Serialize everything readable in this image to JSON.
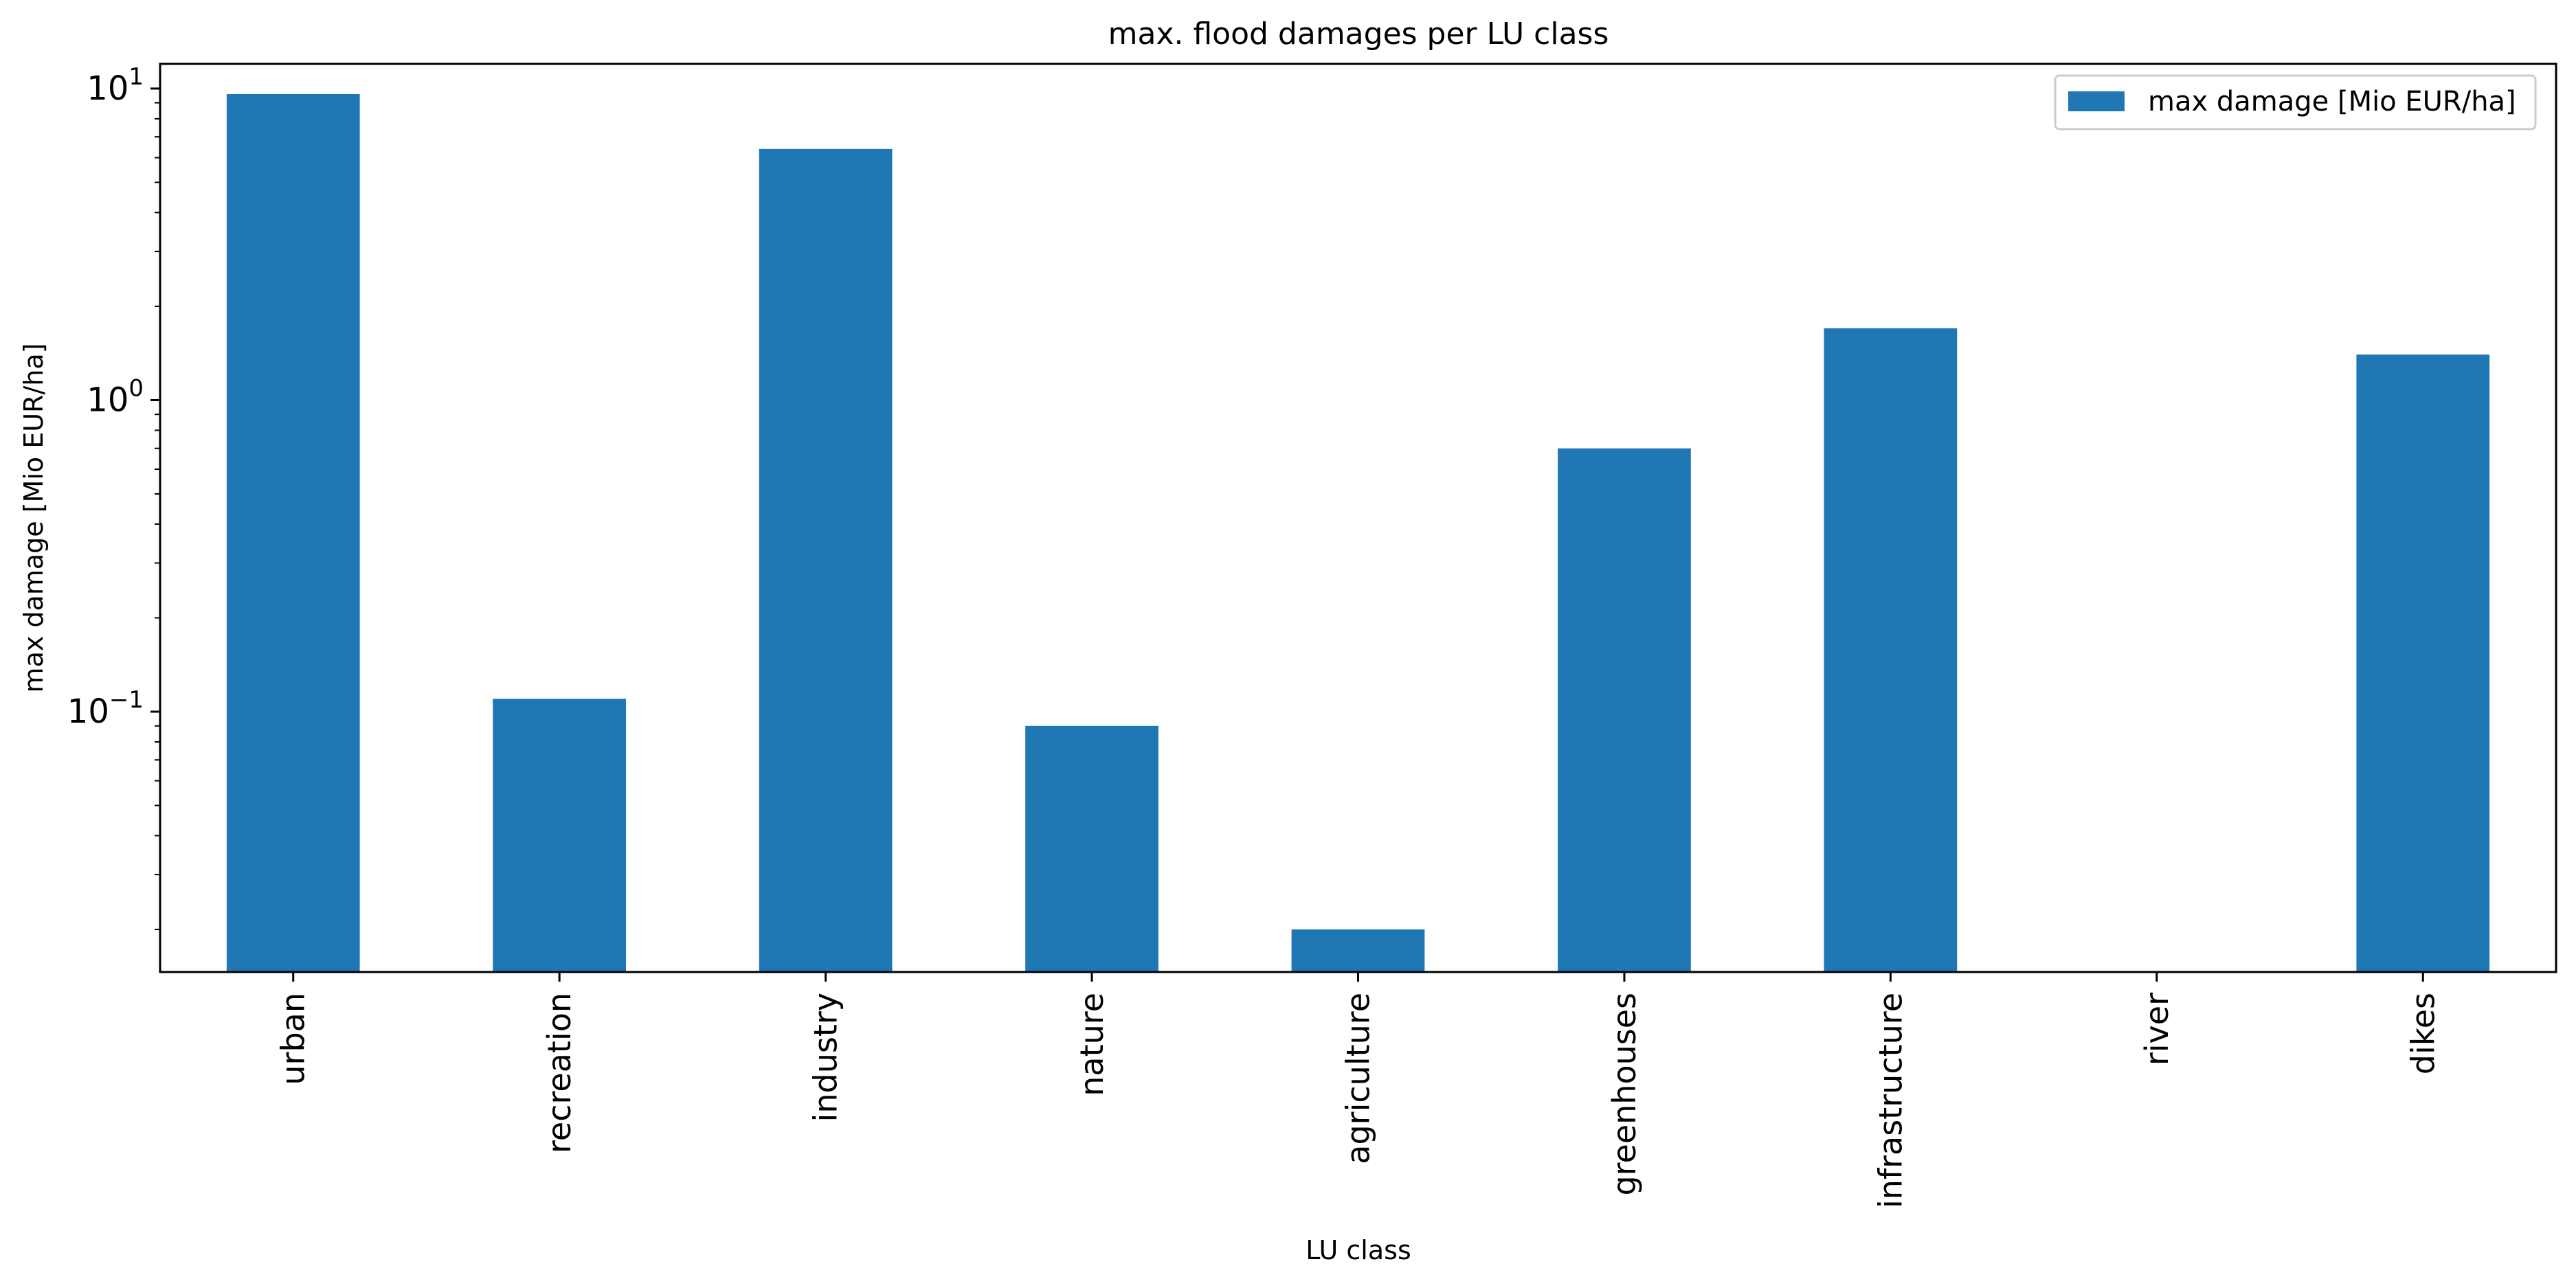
{
  "chart_data": {
    "type": "bar",
    "title": "max. flood damages per LU class",
    "xlabel": "LU class",
    "ylabel": "max damage [Mio EUR/ha]",
    "yscale": "log",
    "ylim": [
      0.0146,
      12.0
    ],
    "categories": [
      "urban",
      "recreation",
      "industry",
      "nature",
      "agriculture",
      "greenhouses",
      "infrastructure",
      "river",
      "dikes"
    ],
    "series": [
      {
        "name": "max damage [Mio EUR/ha]",
        "color": "#1f77b4",
        "values": [
          9.6,
          0.11,
          6.4,
          0.09,
          0.02,
          0.7,
          1.7,
          0.0,
          1.4
        ]
      }
    ],
    "y_major_ticks": [
      {
        "value": 0.1,
        "base": "10",
        "exp": "−1"
      },
      {
        "value": 1,
        "base": "10",
        "exp": "0"
      },
      {
        "value": 10,
        "base": "10",
        "exp": "1"
      }
    ],
    "legend": {
      "position": "top-right",
      "label": "max damage [Mio EUR/ha]"
    },
    "grid": false
  }
}
